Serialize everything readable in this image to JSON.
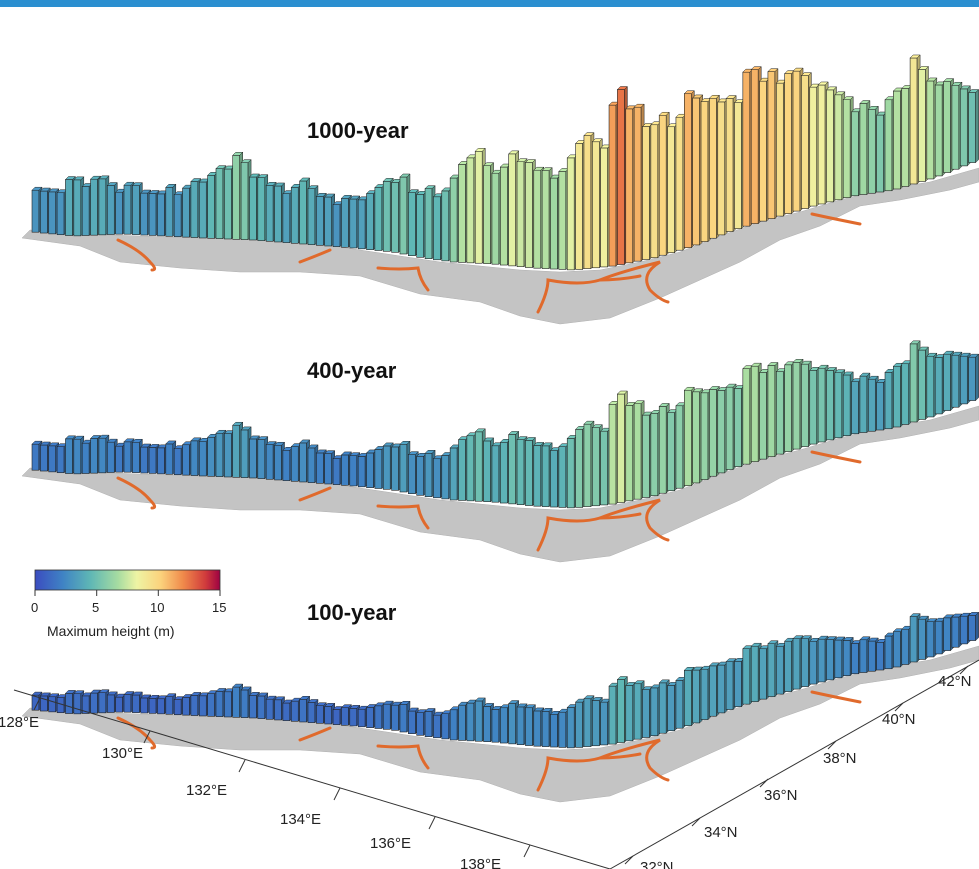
{
  "chart_data": {
    "type": "3d-bar",
    "panels": [
      {
        "title": "1000-year",
        "scale": 1.0
      },
      {
        "title": "400-year",
        "scale": 0.62
      },
      {
        "title": "100-year",
        "scale": 0.36
      }
    ],
    "colorbar": {
      "label": "Maximum height (m)",
      "ticks": [
        "0",
        "5",
        "10",
        "15"
      ],
      "range": [
        0,
        15
      ],
      "colormap": "Spectral_r"
    },
    "x_axis_labels": [
      "128°E",
      "130°E",
      "132°E",
      "134°E",
      "136°E",
      "138°E"
    ],
    "y_axis_labels": [
      "32°N",
      "34°N",
      "36°N",
      "38°N",
      "40°N",
      "42°N"
    ],
    "colors": {
      "land": "#c4c4c4",
      "fault": "#e06a2c",
      "header": "#2b8fd0"
    },
    "heights_1000": [
      3,
      3,
      3,
      3,
      4,
      4,
      3.5,
      4,
      4,
      3.5,
      3,
      3.5,
      3.5,
      3,
      3,
      3,
      3.5,
      3,
      3.5,
      4,
      4,
      4.5,
      5,
      5,
      6,
      5.5,
      4.5,
      4.5,
      4,
      4,
      3.5,
      4,
      4.5,
      4,
      3.5,
      3.5,
      3,
      3.5,
      3.5,
      3.5,
      4,
      4.5,
      5,
      5,
      5.5,
      4.5,
      4.5,
      5,
      4.5,
      5,
      6,
      7,
      7.5,
      8,
      7,
      6.5,
      7,
      8,
      7.5,
      7.5,
      7,
      7,
      6.5,
      7,
      8,
      9,
      9.5,
      9,
      8.5,
      11.5,
      12.5,
      11,
      11,
      9.5,
      9.5,
      10,
      9,
      9.5,
      11,
      10.5,
      10,
      10,
      9.5,
      9.5,
      9,
      11,
      11,
      10,
      10.5,
      9.5,
      10,
      10,
      9.5,
      8.5,
      8.5,
      8,
      7.5,
      7,
      6,
      6.5,
      6,
      5.5,
      6.5,
      7,
      7,
      9,
      8,
      7,
      6.5,
      6.5,
      6,
      5.5,
      5
    ]
  }
}
